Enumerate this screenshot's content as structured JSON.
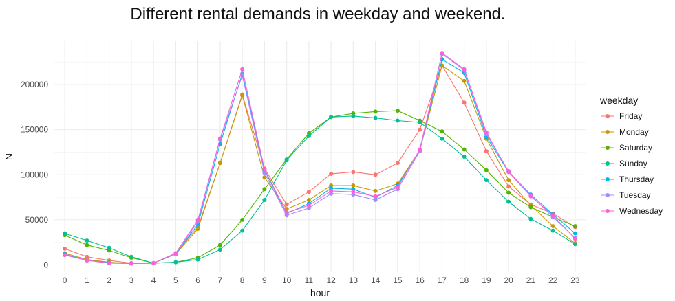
{
  "chart_data": {
    "type": "line",
    "title": "Different rental demands in weekday and weekend.",
    "xlabel": "hour",
    "ylabel": "N",
    "x": [
      0,
      1,
      2,
      3,
      4,
      5,
      6,
      7,
      8,
      9,
      10,
      11,
      12,
      13,
      14,
      15,
      16,
      17,
      18,
      19,
      20,
      21,
      22,
      23
    ],
    "xlim": [
      -0.5,
      23.5
    ],
    "ylim": [
      -8000,
      248000
    ],
    "yticks": [
      0,
      50000,
      100000,
      150000,
      200000
    ],
    "grid": true,
    "legend": {
      "title": "weekday",
      "position": "right"
    },
    "series": [
      {
        "name": "Friday",
        "color": "#F8766D",
        "values": [
          18000,
          9000,
          5000,
          2000,
          2000,
          13000,
          42000,
          113000,
          189000,
          107000,
          67000,
          81000,
          101000,
          103000,
          100000,
          113000,
          150000,
          221000,
          180000,
          126000,
          87000,
          67000,
          57000,
          42000
        ]
      },
      {
        "name": "Monday",
        "color": "#C49A00",
        "values": [
          13000,
          6000,
          3000,
          1500,
          2000,
          12000,
          40000,
          113000,
          188000,
          97000,
          62000,
          72000,
          88000,
          88000,
          82000,
          90000,
          127000,
          221000,
          204000,
          140000,
          94000,
          66000,
          43000,
          24000
        ]
      },
      {
        "name": "Saturday",
        "color": "#53B400",
        "values": [
          33000,
          22000,
          16000,
          8000,
          2000,
          3000,
          8000,
          22000,
          50000,
          84000,
          117000,
          146000,
          164000,
          168000,
          170000,
          171000,
          160000,
          148000,
          128000,
          105000,
          80000,
          64000,
          53000,
          43000
        ]
      },
      {
        "name": "Sunday",
        "color": "#00C094",
        "values": [
          35000,
          27000,
          19000,
          9000,
          2000,
          3000,
          6000,
          17000,
          38000,
          72000,
          116000,
          143000,
          164000,
          165000,
          163000,
          160000,
          158000,
          140000,
          120000,
          94000,
          70000,
          51000,
          38000,
          23000
        ]
      },
      {
        "name": "Thursday",
        "color": "#00B6EB",
        "values": [
          12000,
          5000,
          2500,
          1500,
          2000,
          12000,
          45000,
          134000,
          212000,
          105000,
          57000,
          68000,
          85000,
          84000,
          75000,
          88000,
          127000,
          228000,
          213000,
          142000,
          103000,
          78000,
          56000,
          35000
        ]
      },
      {
        "name": "Tuesday",
        "color": "#A58AFF",
        "values": [
          11000,
          5000,
          2000,
          1500,
          2000,
          12000,
          48000,
          139000,
          210000,
          102000,
          55000,
          63000,
          79000,
          78000,
          72000,
          84000,
          126000,
          234000,
          216000,
          145000,
          104000,
          77000,
          53000,
          30000
        ]
      },
      {
        "name": "Wednesday",
        "color": "#FB61D7",
        "values": [
          11000,
          5000,
          2000,
          1500,
          2000,
          13000,
          50000,
          140000,
          217000,
          106000,
          58000,
          66000,
          82000,
          81000,
          76000,
          86000,
          128000,
          235000,
          217000,
          147000,
          103000,
          76000,
          55000,
          29000
        ]
      }
    ]
  }
}
